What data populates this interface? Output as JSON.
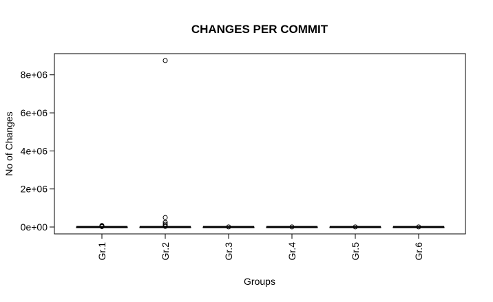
{
  "chart_data": {
    "type": "box",
    "title": "CHANGES PER COMMIT",
    "xlabel": "Groups",
    "ylabel": "No of Changes",
    "categories": [
      "Gr.1",
      "Gr.2",
      "Gr.3",
      "Gr.4",
      "Gr.5",
      "Gr.6"
    ],
    "ylim": [
      -400000,
      9000000
    ],
    "yticks": [
      0,
      2000000,
      4000000,
      6000000,
      8000000
    ],
    "ytick_labels": [
      "0e+00",
      "2e+06",
      "4e+06",
      "6e+06",
      "8e+06"
    ],
    "series": [
      {
        "category": "Gr.1",
        "median": 0,
        "q1": 0,
        "q3": 0,
        "outliers": [
          20000,
          40000,
          60000,
          80000
        ]
      },
      {
        "category": "Gr.2",
        "median": 0,
        "q1": 0,
        "q3": 0,
        "outliers": [
          8750000,
          500000,
          250000,
          150000,
          80000,
          30000
        ]
      },
      {
        "category": "Gr.3",
        "median": 0,
        "q1": 0,
        "q3": 0,
        "outliers": [
          5000
        ]
      },
      {
        "category": "Gr.4",
        "median": 0,
        "q1": 0,
        "q3": 0,
        "outliers": [
          5000
        ]
      },
      {
        "category": "Gr.5",
        "median": 0,
        "q1": 0,
        "q3": 0,
        "outliers": [
          5000
        ]
      },
      {
        "category": "Gr.6",
        "median": 0,
        "q1": 0,
        "q3": 0,
        "outliers": [
          5000
        ]
      }
    ],
    "grid": false,
    "legend": "none"
  }
}
